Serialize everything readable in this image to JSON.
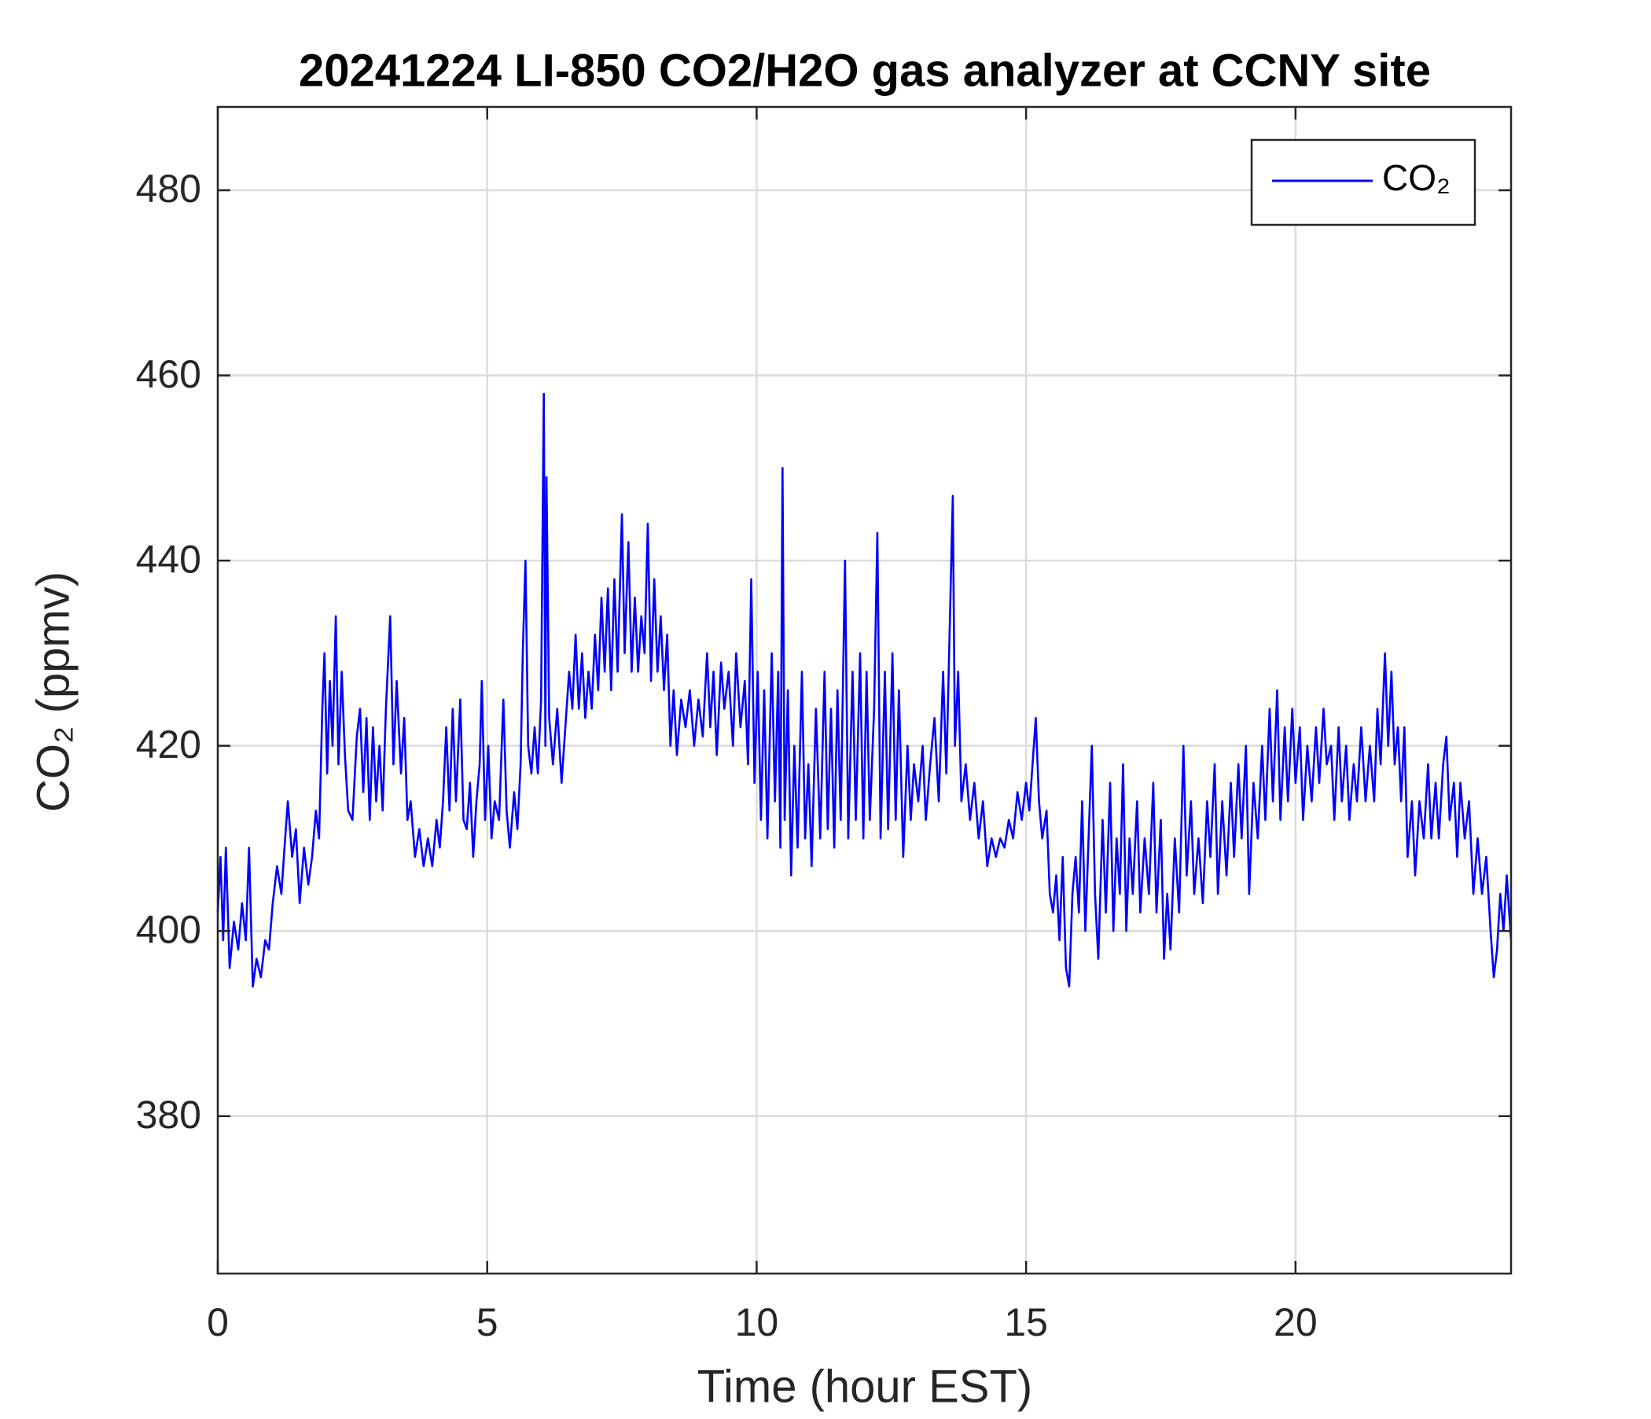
{
  "chart_data": {
    "type": "line",
    "title": "20241224 LI-850 CO2/H2O gas analyzer at CCNY site",
    "x_label": "Time (hour EST)",
    "y_label": "CO₂ (ppmv)",
    "xlim": [
      0,
      24
    ],
    "xticks": [
      0,
      5,
      10,
      15,
      20
    ],
    "ylim": [
      363,
      489
    ],
    "yticks": [
      380,
      400,
      420,
      440,
      460,
      480
    ],
    "grid": true,
    "legend": "northeast",
    "x": [
      0.0,
      0.05,
      0.1,
      0.15,
      0.22,
      0.3,
      0.38,
      0.45,
      0.52,
      0.58,
      0.65,
      0.72,
      0.8,
      0.88,
      0.95,
      1.02,
      1.1,
      1.18,
      1.25,
      1.3,
      1.38,
      1.45,
      1.52,
      1.6,
      1.68,
      1.75,
      1.82,
      1.88,
      1.94,
      1.98,
      2.03,
      2.08,
      2.13,
      2.19,
      2.24,
      2.3,
      2.36,
      2.42,
      2.5,
      2.58,
      2.64,
      2.7,
      2.76,
      2.82,
      2.88,
      2.94,
      3.0,
      3.06,
      3.12,
      3.2,
      3.26,
      3.32,
      3.4,
      3.46,
      3.52,
      3.58,
      3.66,
      3.74,
      3.82,
      3.9,
      3.98,
      4.06,
      4.12,
      4.18,
      4.24,
      4.3,
      4.36,
      4.42,
      4.5,
      4.56,
      4.62,
      4.68,
      4.74,
      4.8,
      4.86,
      4.9,
      4.96,
      5.02,
      5.08,
      5.14,
      5.22,
      5.3,
      5.36,
      5.42,
      5.5,
      5.56,
      5.62,
      5.66,
      5.71,
      5.76,
      5.82,
      5.88,
      5.94,
      6.0,
      6.05,
      6.08,
      6.1,
      6.15,
      6.22,
      6.3,
      6.38,
      6.45,
      6.52,
      6.58,
      6.64,
      6.7,
      6.76,
      6.82,
      6.88,
      6.94,
      7.0,
      7.06,
      7.12,
      7.18,
      7.24,
      7.3,
      7.36,
      7.42,
      7.5,
      7.55,
      7.62,
      7.68,
      7.74,
      7.8,
      7.86,
      7.92,
      7.98,
      8.04,
      8.1,
      8.16,
      8.22,
      8.28,
      8.34,
      8.4,
      8.46,
      8.52,
      8.6,
      8.68,
      8.76,
      8.84,
      8.92,
      9.0,
      9.08,
      9.14,
      9.2,
      9.26,
      9.34,
      9.4,
      9.48,
      9.56,
      9.62,
      9.7,
      9.78,
      9.84,
      9.9,
      9.96,
      10.02,
      10.08,
      10.14,
      10.2,
      10.28,
      10.34,
      10.4,
      10.44,
      10.48,
      10.52,
      10.58,
      10.64,
      10.7,
      10.76,
      10.84,
      10.9,
      10.96,
      11.02,
      11.1,
      11.18,
      11.26,
      11.32,
      11.38,
      11.44,
      11.5,
      11.56,
      11.64,
      11.7,
      11.78,
      11.84,
      11.92,
      11.98,
      12.04,
      12.1,
      12.18,
      12.24,
      12.3,
      12.38,
      12.44,
      12.52,
      12.58,
      12.64,
      12.72,
      12.8,
      12.86,
      12.92,
      13.0,
      13.08,
      13.14,
      13.22,
      13.3,
      13.38,
      13.46,
      13.52,
      13.58,
      13.64,
      13.68,
      13.74,
      13.8,
      13.88,
      13.96,
      14.04,
      14.12,
      14.2,
      14.28,
      14.36,
      14.44,
      14.52,
      14.6,
      14.68,
      14.76,
      14.84,
      14.92,
      15.0,
      15.06,
      15.12,
      15.18,
      15.24,
      15.3,
      15.38,
      15.44,
      15.5,
      15.56,
      15.62,
      15.68,
      15.74,
      15.8,
      15.86,
      15.92,
      15.98,
      16.04,
      16.1,
      16.16,
      16.22,
      16.28,
      16.34,
      16.42,
      16.48,
      16.56,
      16.62,
      16.68,
      16.74,
      16.8,
      16.86,
      16.92,
      16.98,
      17.06,
      17.12,
      17.2,
      17.28,
      17.36,
      17.42,
      17.5,
      17.56,
      17.62,
      17.68,
      17.76,
      17.84,
      17.92,
      17.98,
      18.06,
      18.12,
      18.2,
      18.28,
      18.36,
      18.42,
      18.5,
      18.56,
      18.64,
      18.72,
      18.8,
      18.86,
      18.94,
      19.0,
      19.08,
      19.14,
      19.22,
      19.3,
      19.38,
      19.44,
      19.52,
      19.58,
      19.66,
      19.72,
      19.8,
      19.86,
      19.94,
      20.0,
      20.08,
      20.14,
      20.22,
      20.3,
      20.38,
      20.44,
      20.52,
      20.58,
      20.66,
      20.72,
      20.8,
      20.86,
      20.94,
      21.0,
      21.08,
      21.14,
      21.22,
      21.3,
      21.38,
      21.46,
      21.52,
      21.58,
      21.66,
      21.72,
      21.78,
      21.84,
      21.9,
      21.96,
      22.02,
      22.08,
      22.16,
      22.22,
      22.3,
      22.38,
      22.46,
      22.52,
      22.6,
      22.66,
      22.74,
      22.8,
      22.86,
      22.94,
      23.0,
      23.06,
      23.14,
      23.22,
      23.3,
      23.38,
      23.46,
      23.54,
      23.62,
      23.68,
      23.74,
      23.8,
      23.86,
      23.92,
      24.0
    ],
    "series": [
      {
        "name": "CO₂",
        "color": "#0000ff",
        "values": [
          402,
          408,
          399,
          409,
          396,
          401,
          398,
          403,
          399,
          409,
          394,
          397,
          395,
          399,
          398,
          403,
          407,
          404,
          410,
          414,
          408,
          411,
          403,
          409,
          405,
          408,
          413,
          410,
          424,
          430,
          417,
          427,
          420,
          434,
          418,
          428,
          419,
          413,
          412,
          421,
          424,
          415,
          423,
          412,
          422,
          414,
          420,
          413,
          424,
          434,
          418,
          427,
          417,
          423,
          412,
          414,
          408,
          411,
          407,
          410,
          407,
          412,
          409,
          414,
          422,
          413,
          424,
          414,
          425,
          412,
          411,
          416,
          408,
          414,
          418,
          427,
          412,
          420,
          410,
          414,
          412,
          425,
          413,
          409,
          415,
          411,
          418,
          430,
          440,
          420,
          417,
          422,
          417,
          425,
          458,
          420,
          449,
          423,
          418,
          424,
          416,
          422,
          428,
          424,
          432,
          424,
          430,
          423,
          428,
          424,
          432,
          426,
          436,
          428,
          437,
          426,
          438,
          428,
          445,
          430,
          442,
          428,
          436,
          428,
          434,
          430,
          444,
          427,
          438,
          428,
          434,
          426,
          432,
          420,
          426,
          419,
          425,
          422,
          426,
          420,
          425,
          421,
          430,
          422,
          428,
          419,
          429,
          424,
          428,
          420,
          430,
          422,
          427,
          418,
          438,
          416,
          428,
          412,
          426,
          410,
          430,
          414,
          428,
          409,
          450,
          412,
          426,
          406,
          420,
          409,
          428,
          410,
          418,
          407,
          424,
          410,
          428,
          411,
          424,
          409,
          426,
          412,
          440,
          410,
          428,
          412,
          430,
          410,
          428,
          412,
          424,
          443,
          410,
          428,
          411,
          430,
          412,
          426,
          408,
          420,
          412,
          418,
          414,
          420,
          412,
          418,
          423,
          414,
          428,
          417,
          432,
          447,
          420,
          428,
          414,
          418,
          412,
          416,
          410,
          414,
          407,
          410,
          408,
          410,
          409,
          412,
          410,
          415,
          412,
          416,
          413,
          418,
          423,
          414,
          410,
          413,
          404,
          402,
          406,
          399,
          408,
          396,
          394,
          404,
          408,
          402,
          414,
          400,
          410,
          420,
          404,
          397,
          412,
          402,
          416,
          400,
          410,
          404,
          418,
          400,
          410,
          404,
          414,
          402,
          410,
          404,
          416,
          402,
          412,
          397,
          404,
          398,
          410,
          402,
          420,
          406,
          414,
          404,
          410,
          403,
          414,
          408,
          418,
          404,
          414,
          406,
          416,
          408,
          418,
          410,
          420,
          404,
          416,
          410,
          420,
          412,
          424,
          414,
          426,
          412,
          422,
          414,
          424,
          416,
          422,
          412,
          420,
          414,
          422,
          416,
          424,
          418,
          420,
          412,
          422,
          414,
          420,
          412,
          418,
          414,
          422,
          414,
          420,
          414,
          424,
          418,
          430,
          420,
          428,
          418,
          422,
          414,
          422,
          408,
          414,
          406,
          414,
          410,
          418,
          410,
          416,
          410,
          418,
          421,
          412,
          416,
          408,
          416,
          410,
          414,
          404,
          410,
          404,
          408,
          400,
          395,
          398,
          404,
          400,
          406,
          399
        ]
      }
    ]
  }
}
